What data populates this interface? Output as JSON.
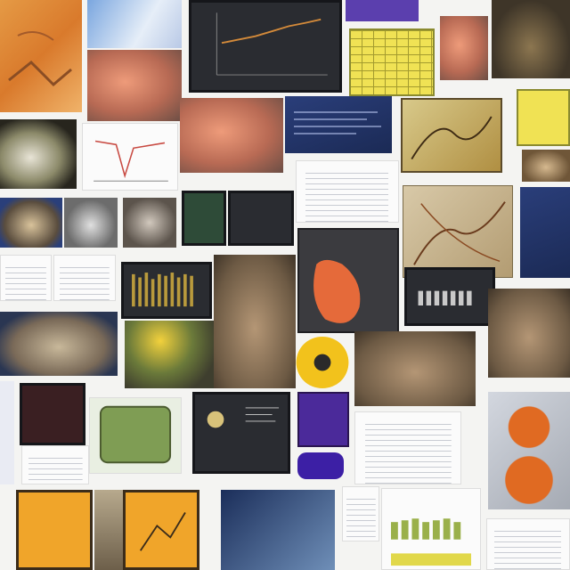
{
  "tiles": {
    "count": 40
  },
  "colors": {
    "background": "#f4f4f2",
    "orange": "#e59a45",
    "dark_screen": "#2a2c31",
    "yellow": "#f0e254",
    "purple": "#4b2a9a",
    "blue": "#1b2a55"
  }
}
